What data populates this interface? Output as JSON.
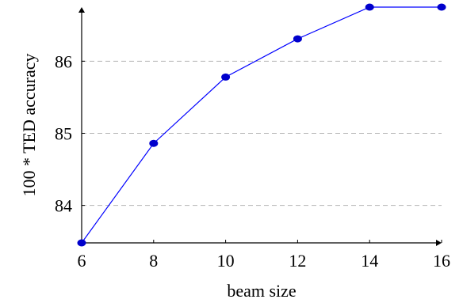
{
  "chart_data": {
    "type": "line",
    "title": "",
    "xlabel": "beam size",
    "ylabel": "100 * TED accuracy",
    "x": [
      6,
      8,
      10,
      12,
      14,
      16
    ],
    "series": [
      {
        "values": [
          83.48,
          84.86,
          85.78,
          86.31,
          86.75,
          86.75
        ]
      }
    ],
    "xlim": [
      6,
      16
    ],
    "ylim": [
      83.48,
      86.75
    ],
    "xticks": [
      "6",
      "8",
      "10",
      "12",
      "14",
      "16"
    ],
    "yticks": [
      {
        "value": 84,
        "label": "84"
      },
      {
        "value": 85,
        "label": "85"
      },
      {
        "value": 86,
        "label": "86"
      }
    ],
    "grid": "horizontal dashed",
    "legend": "none",
    "colors": {
      "series": "#0000ff",
      "marker": "#0000cc",
      "grid": "#b3b3b3",
      "axis": "#000000"
    }
  }
}
